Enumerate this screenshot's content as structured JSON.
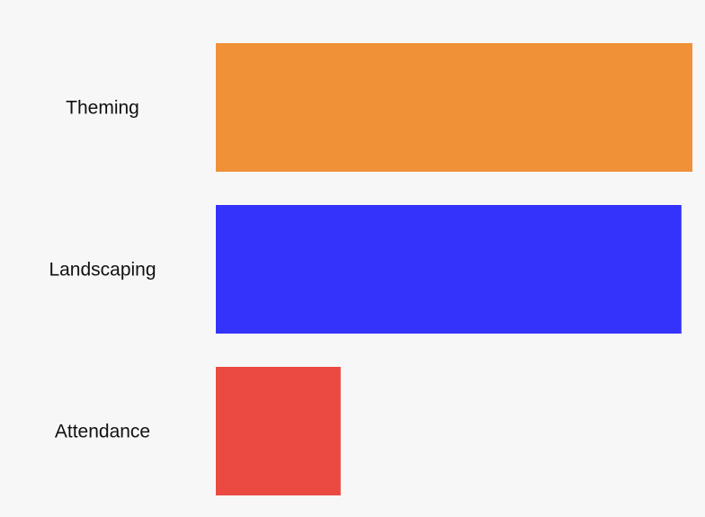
{
  "chart_data": {
    "type": "bar",
    "orientation": "horizontal",
    "categories": [
      "Theming",
      "Landscaping",
      "Attendance"
    ],
    "values": [
      100,
      97.7,
      26.2
    ],
    "colors": [
      "#f09037",
      "#3333fb",
      "#eb4a42"
    ],
    "title": "",
    "xlabel": "",
    "ylabel": "",
    "xlim": [
      0,
      100
    ],
    "grid": false,
    "legend": "none"
  },
  "background_color": "#f7f7f8"
}
